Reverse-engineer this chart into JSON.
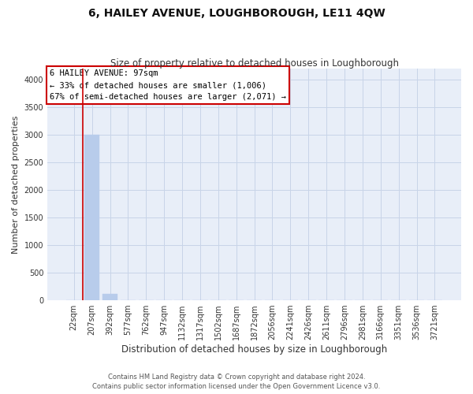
{
  "title": "6, HAILEY AVENUE, LOUGHBOROUGH, LE11 4QW",
  "subtitle": "Size of property relative to detached houses in Loughborough",
  "xlabel": "Distribution of detached houses by size in Loughborough",
  "ylabel": "Number of detached properties",
  "footer_line1": "Contains HM Land Registry data © Crown copyright and database right 2024.",
  "footer_line2": "Contains public sector information licensed under the Open Government Licence v3.0.",
  "categories": [
    "22sqm",
    "207sqm",
    "392sqm",
    "577sqm",
    "762sqm",
    "947sqm",
    "1132sqm",
    "1317sqm",
    "1502sqm",
    "1687sqm",
    "1872sqm",
    "2056sqm",
    "2241sqm",
    "2426sqm",
    "2611sqm",
    "2796sqm",
    "2981sqm",
    "3166sqm",
    "3351sqm",
    "3536sqm",
    "3721sqm"
  ],
  "values": [
    0,
    3000,
    120,
    0,
    0,
    0,
    0,
    0,
    0,
    0,
    0,
    0,
    0,
    0,
    0,
    0,
    0,
    0,
    0,
    0,
    0
  ],
  "bar_color": "#b8cceb",
  "bar_edge_color": "#b8cceb",
  "grid_color": "#c8d4e8",
  "bg_color": "#e8eef8",
  "vline_color": "#cc0000",
  "vline_x_index": 1.5,
  "annotation_text": "6 HAILEY AVENUE: 97sqm\n← 33% of detached houses are smaller (1,006)\n67% of semi-detached houses are larger (2,071) →",
  "annotation_box_edge": "#cc0000",
  "ylim": [
    0,
    4200
  ],
  "yticks": [
    0,
    500,
    1000,
    1500,
    2000,
    2500,
    3000,
    3500,
    4000
  ],
  "title_fontsize": 10,
  "subtitle_fontsize": 8.5,
  "ylabel_fontsize": 8,
  "xlabel_fontsize": 8.5,
  "tick_fontsize": 7,
  "annot_fontsize": 7.5,
  "footer_fontsize": 6
}
